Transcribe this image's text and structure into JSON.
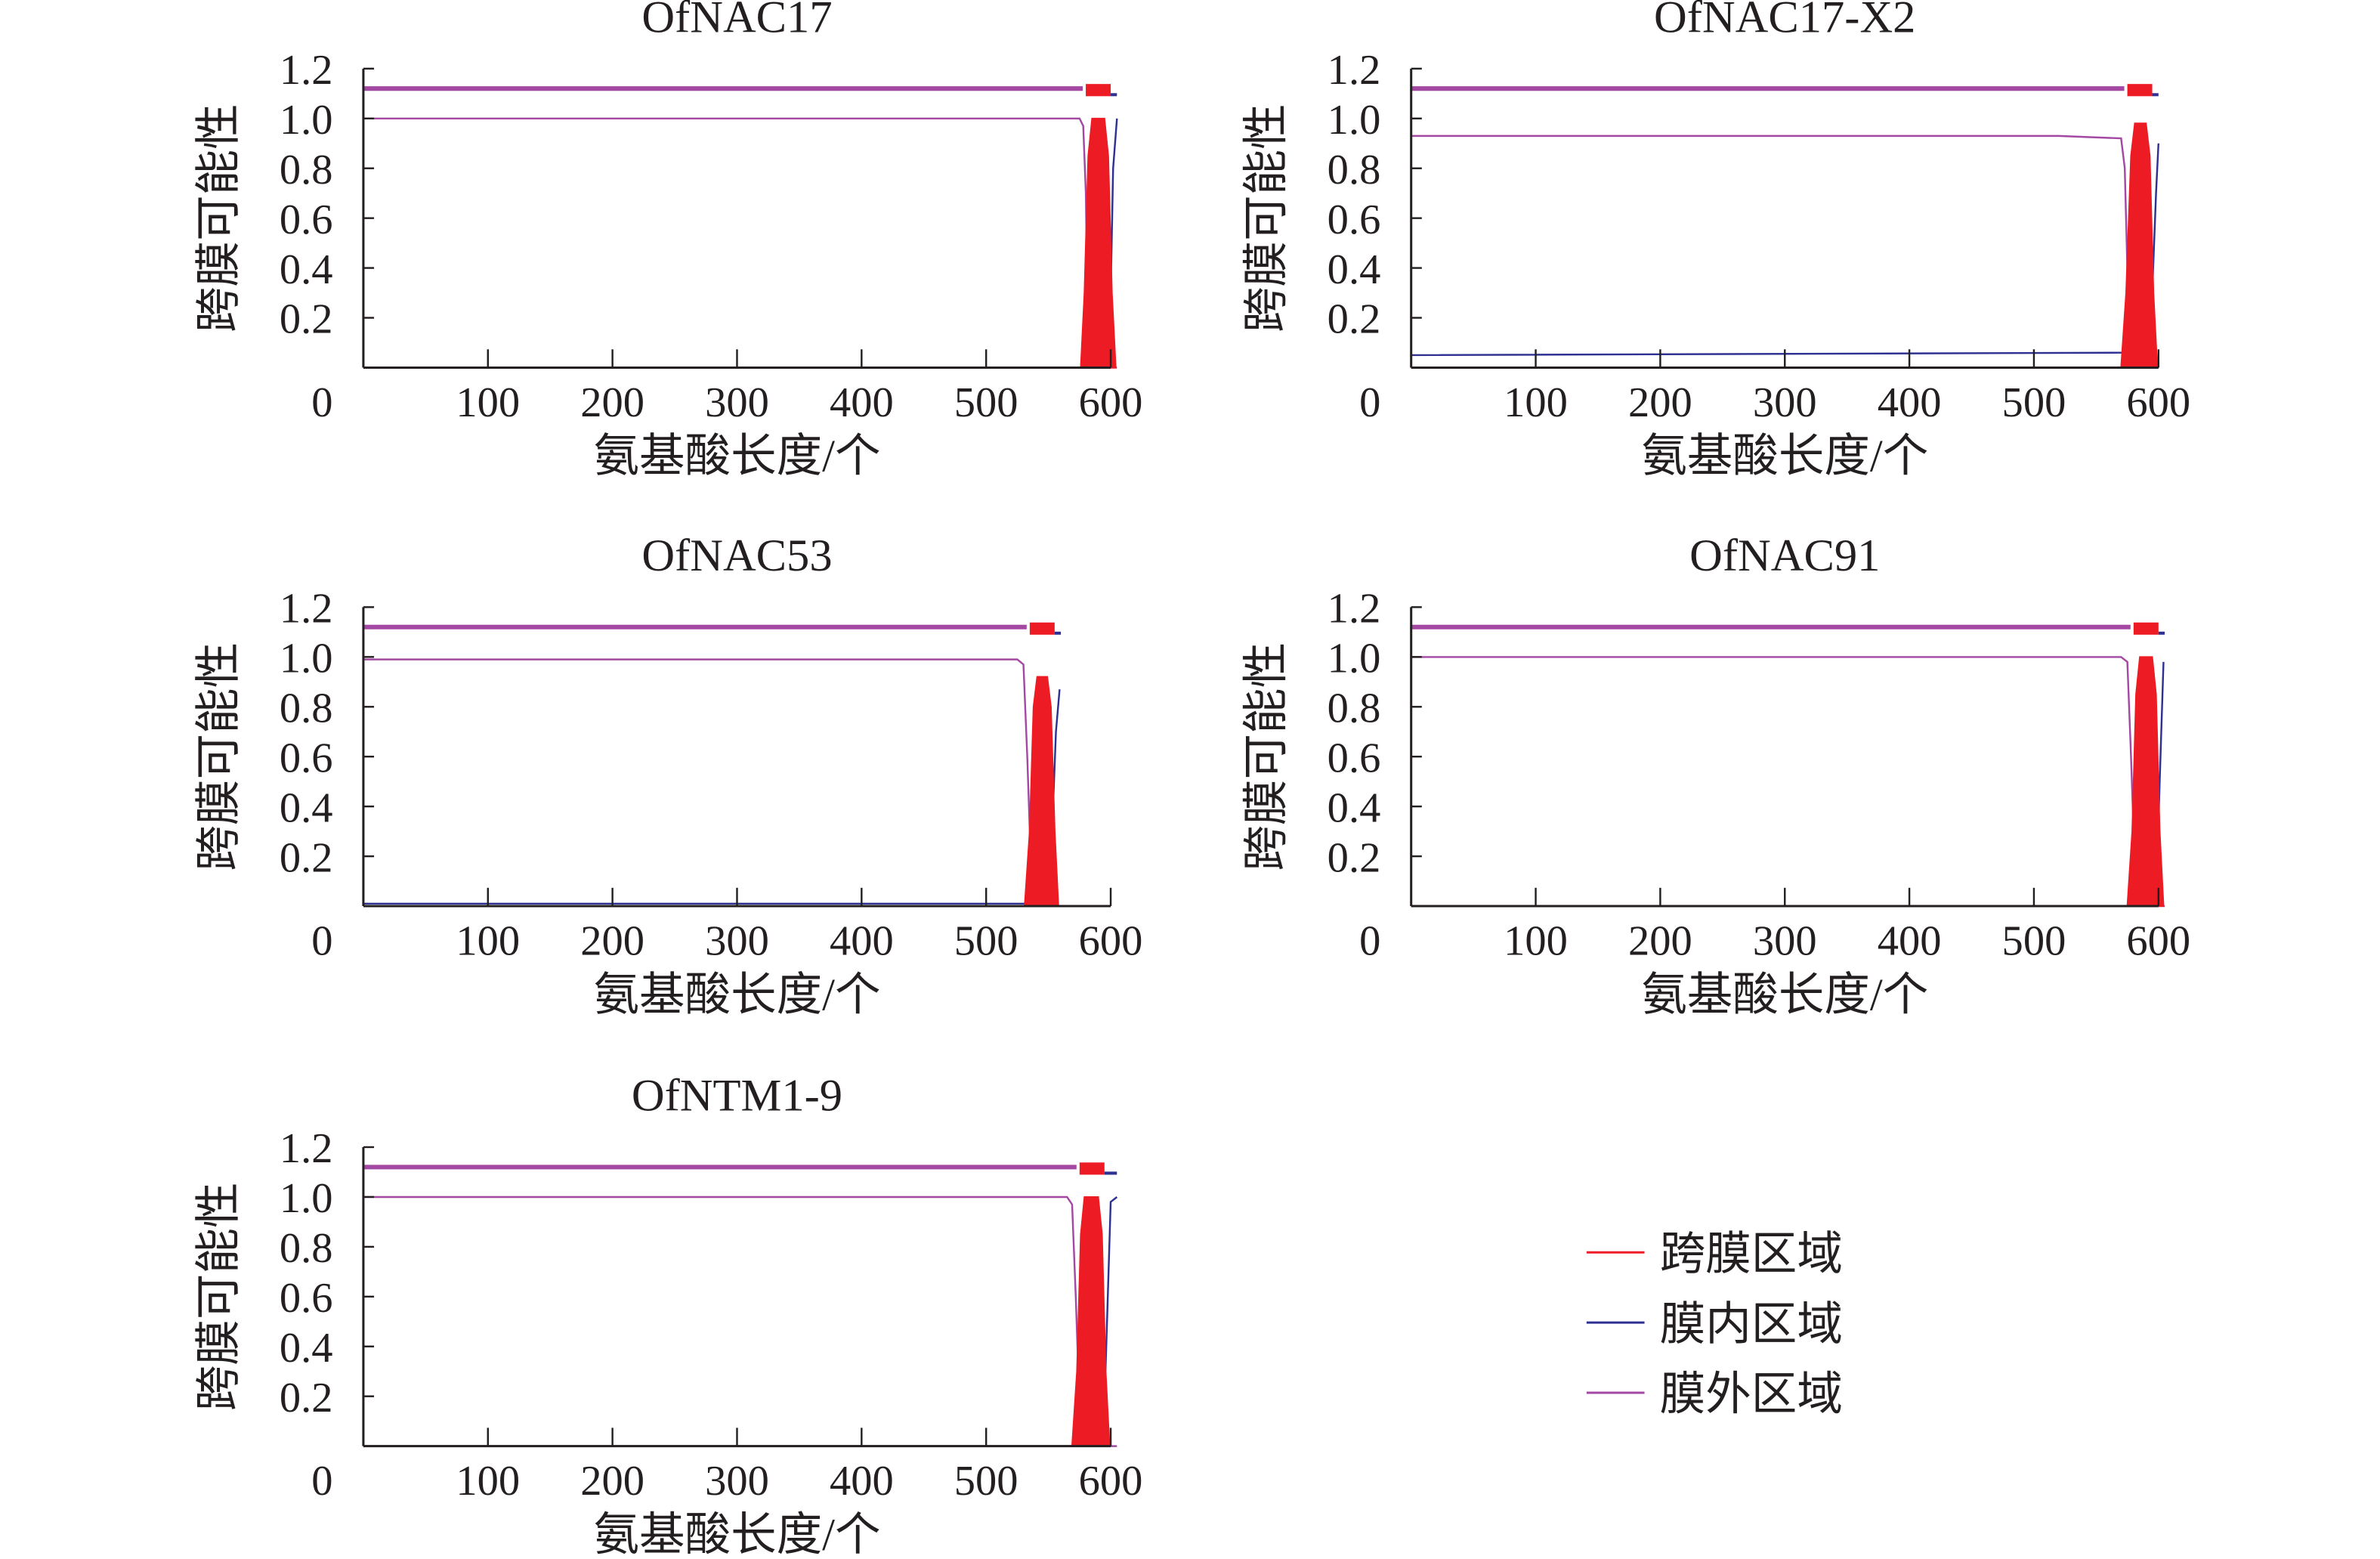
{
  "legend": [
    {
      "label": "跨膜区域",
      "color": "#ed1c24"
    },
    {
      "label": "膜内区域",
      "color": "#2e3192"
    },
    {
      "label": "膜外区域",
      "color": "#a349a4"
    }
  ],
  "chart_data": [
    {
      "type": "line",
      "title": "OfNAC17",
      "xlabel": "氨基酸长度/个",
      "ylabel": "跨膜可能性",
      "xlim": [
        0,
        600
      ],
      "ylim": [
        0,
        1.2
      ],
      "xticks": [
        "0",
        "100",
        "200",
        "300",
        "400",
        "500",
        "600"
      ],
      "yticks": [
        "0.2",
        "0.4",
        "0.6",
        "0.8",
        "1.0",
        "1.2"
      ],
      "length": 605,
      "tm_segment": [
        580,
        600
      ],
      "series": [
        {
          "name": "膜外区域",
          "points": [
            [
              0,
              1.0
            ],
            [
              575,
              1.0
            ],
            [
              578,
              0.97
            ],
            [
              580,
              0.7
            ],
            [
              582,
              0.0
            ],
            [
              605,
              0.0
            ]
          ]
        },
        {
          "name": "膜内区域",
          "points": [
            [
              0,
              0.0
            ],
            [
              598,
              0.0
            ],
            [
              600,
              0.3
            ],
            [
              602,
              0.8
            ],
            [
              605,
              1.0
            ]
          ]
        },
        {
          "name": "跨膜区域",
          "points": [
            [
              576,
              0
            ],
            [
              579,
              0.3
            ],
            [
              582,
              0.85
            ],
            [
              585,
              1.0
            ],
            [
              595,
              1.0
            ],
            [
              598,
              0.85
            ],
            [
              601,
              0.3
            ],
            [
              604,
              0
            ]
          ]
        }
      ]
    },
    {
      "type": "line",
      "title": "OfNAC17-X2",
      "xlabel": "氨基酸长度/个",
      "ylabel": "跨膜可能性",
      "xlim": [
        0,
        600
      ],
      "ylim": [
        0,
        1.2
      ],
      "xticks": [
        "0",
        "100",
        "200",
        "300",
        "400",
        "500",
        "600"
      ],
      "yticks": [
        "0.2",
        "0.4",
        "0.6",
        "0.8",
        "1.0",
        "1.2"
      ],
      "length": 600,
      "tm_segment": [
        575,
        595
      ],
      "series": [
        {
          "name": "膜外区域",
          "points": [
            [
              0,
              0.93
            ],
            [
              520,
              0.93
            ],
            [
              570,
              0.92
            ],
            [
              573,
              0.8
            ],
            [
              576,
              0.2
            ],
            [
              580,
              0.0
            ],
            [
              600,
              0.0
            ]
          ]
        },
        {
          "name": "膜内区域",
          "points": [
            [
              0,
              0.05
            ],
            [
              570,
              0.06
            ],
            [
              592,
              0.06
            ],
            [
              595,
              0.3
            ],
            [
              598,
              0.7
            ],
            [
              600,
              0.9
            ]
          ]
        },
        {
          "name": "跨膜区域",
          "points": [
            [
              570,
              0
            ],
            [
              574,
              0.3
            ],
            [
              578,
              0.85
            ],
            [
              581,
              0.98
            ],
            [
              590,
              0.98
            ],
            [
              593,
              0.85
            ],
            [
              596,
              0.3
            ],
            [
              599,
              0
            ]
          ]
        }
      ]
    },
    {
      "type": "line",
      "title": "OfNAC53",
      "xlabel": "氨基酸长度/个",
      "ylabel": "跨膜可能性",
      "xlim": [
        0,
        600
      ],
      "ylim": [
        0,
        1.2
      ],
      "xticks": [
        "0",
        "100",
        "200",
        "300",
        "400",
        "500",
        "600"
      ],
      "yticks": [
        "0.2",
        "0.4",
        "0.6",
        "0.8",
        "1.0",
        "1.2"
      ],
      "length": 560,
      "tm_segment": [
        535,
        555
      ],
      "series": [
        {
          "name": "膜外区域",
          "points": [
            [
              0,
              0.99
            ],
            [
              525,
              0.99
            ],
            [
              530,
              0.97
            ],
            [
              533,
              0.6
            ],
            [
              537,
              0.0
            ],
            [
              560,
              0.0
            ]
          ]
        },
        {
          "name": "膜内区域",
          "points": [
            [
              0,
              0.01
            ],
            [
              550,
              0.01
            ],
            [
              553,
              0.3
            ],
            [
              556,
              0.7
            ],
            [
              559,
              0.87
            ]
          ]
        },
        {
          "name": "跨膜区域",
          "points": [
            [
              531,
              0
            ],
            [
              535,
              0.3
            ],
            [
              538,
              0.8
            ],
            [
              541,
              0.92
            ],
            [
              549,
              0.92
            ],
            [
              552,
              0.8
            ],
            [
              555,
              0.3
            ],
            [
              558,
              0
            ]
          ]
        }
      ]
    },
    {
      "type": "line",
      "title": "OfNAC91",
      "xlabel": "氨基酸长度/个",
      "ylabel": "跨膜可能性",
      "xlim": [
        0,
        600
      ],
      "ylim": [
        0,
        1.2
      ],
      "xticks": [
        "0",
        "100",
        "200",
        "300",
        "400",
        "500",
        "600"
      ],
      "yticks": [
        "0.2",
        "0.4",
        "0.6",
        "0.8",
        "1.0",
        "1.2"
      ],
      "length": 605,
      "tm_segment": [
        580,
        600
      ],
      "series": [
        {
          "name": "膜外区域",
          "points": [
            [
              0,
              1.0
            ],
            [
              570,
              1.0
            ],
            [
              575,
              0.98
            ],
            [
              578,
              0.6
            ],
            [
              582,
              0.0
            ],
            [
              605,
              0.0
            ]
          ]
        },
        {
          "name": "膜内区域",
          "points": [
            [
              0,
              0.0
            ],
            [
              598,
              0.0
            ],
            [
              601,
              0.5
            ],
            [
              604,
              0.98
            ]
          ]
        },
        {
          "name": "跨膜区域",
          "points": [
            [
              575,
              0
            ],
            [
              579,
              0.3
            ],
            [
              582,
              0.85
            ],
            [
              585,
              1.0
            ],
            [
              595,
              1.0
            ],
            [
              598,
              0.85
            ],
            [
              601,
              0.3
            ],
            [
              604,
              0
            ]
          ]
        }
      ]
    },
    {
      "type": "line",
      "title": "OfNTM1-9",
      "xlabel": "氨基酸长度/个",
      "ylabel": "跨膜可能性",
      "xlim": [
        0,
        600
      ],
      "ylim": [
        0,
        1.2
      ],
      "xticks": [
        "0",
        "100",
        "200",
        "300",
        "400",
        "500",
        "600"
      ],
      "yticks": [
        "0.2",
        "0.4",
        "0.6",
        "0.8",
        "1.0",
        "1.2"
      ],
      "length": 605,
      "tm_segment": [
        575,
        595
      ],
      "series": [
        {
          "name": "膜外区域",
          "points": [
            [
              0,
              1.0
            ],
            [
              565,
              1.0
            ],
            [
              569,
              0.97
            ],
            [
              572,
              0.6
            ],
            [
              576,
              0.0
            ],
            [
              605,
              0.0
            ]
          ]
        },
        {
          "name": "膜内区域",
          "points": [
            [
              0,
              0.0
            ],
            [
              594,
              0.0
            ],
            [
              597,
              0.5
            ],
            [
              600,
              0.98
            ],
            [
              605,
              1.0
            ]
          ]
        },
        {
          "name": "跨膜区域",
          "points": [
            [
              569,
              0
            ],
            [
              573,
              0.3
            ],
            [
              576,
              0.85
            ],
            [
              579,
              1.0
            ],
            [
              590,
              1.0
            ],
            [
              593,
              0.85
            ],
            [
              596,
              0.3
            ],
            [
              599,
              0
            ]
          ]
        }
      ]
    }
  ]
}
